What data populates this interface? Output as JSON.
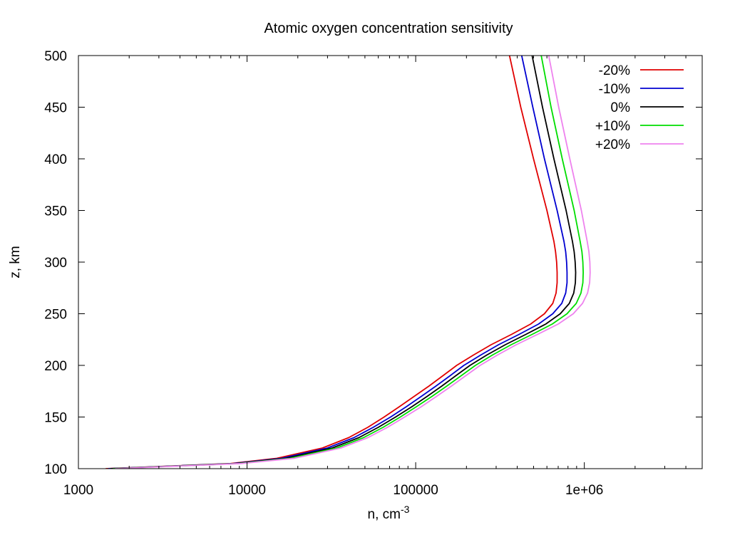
{
  "chart_data": {
    "type": "line",
    "title": "Atomic oxygen concentration sensitivity",
    "xlabel": "n, cm",
    "xlabel_superscript": "-3",
    "ylabel": "z, km",
    "x_scale": "log",
    "xlim": [
      1000,
      5000000
    ],
    "ylim": [
      100,
      500
    ],
    "x_tick_labels": [
      "1000",
      "10000",
      "100000",
      "1e+06"
    ],
    "x_tick_values": [
      1000,
      10000,
      100000,
      1000000
    ],
    "y_ticks": [
      100,
      150,
      200,
      250,
      300,
      350,
      400,
      450,
      500
    ],
    "grid": false,
    "legend_position": "top-right",
    "altitudes": [
      100,
      105,
      110,
      120,
      130,
      140,
      150,
      160,
      170,
      180,
      190,
      200,
      210,
      220,
      230,
      240,
      250,
      260,
      270,
      280,
      290,
      300,
      310,
      320,
      350,
      400,
      450,
      500
    ],
    "series": [
      {
        "name": "-20%",
        "color": "#e00000",
        "values": [
          1450,
          8000,
          15000,
          28000,
          40000,
          52000,
          65000,
          80000,
          98000,
          120000,
          145000,
          175000,
          220000,
          280000,
          370000,
          480000,
          580000,
          650000,
          680000,
          690000,
          690000,
          685000,
          675000,
          660000,
          600000,
          500000,
          420000,
          360000
        ]
      },
      {
        "name": "-10%",
        "color": "#0000d0",
        "values": [
          1500,
          8300,
          16000,
          30000,
          43000,
          56000,
          71000,
          88000,
          108000,
          132000,
          160000,
          193000,
          243000,
          310000,
          410000,
          535000,
          650000,
          735000,
          775000,
          790000,
          790000,
          785000,
          775000,
          757000,
          690000,
          580000,
          495000,
          425000
        ]
      },
      {
        "name": "0%",
        "color": "#000000",
        "values": [
          1550,
          8600,
          17000,
          32000,
          46000,
          60000,
          76000,
          95000,
          117000,
          143000,
          173000,
          210000,
          264000,
          340000,
          450000,
          590000,
          720000,
          815000,
          865000,
          885000,
          888000,
          882000,
          870000,
          850000,
          780000,
          660000,
          565000,
          490000
        ]
      },
      {
        "name": "+10%",
        "color": "#00dd00",
        "values": [
          1600,
          8900,
          18000,
          34000,
          49000,
          64000,
          81000,
          101000,
          125000,
          153000,
          186000,
          226000,
          285000,
          368000,
          490000,
          645000,
          790000,
          895000,
          955000,
          980000,
          985000,
          980000,
          968000,
          945000,
          870000,
          740000,
          635000,
          555000
        ]
      },
      {
        "name": "+20%",
        "color": "#ee82ee",
        "values": [
          1650,
          9200,
          19000,
          36000,
          52000,
          68000,
          86000,
          108000,
          133000,
          163000,
          198000,
          241000,
          305000,
          395000,
          528000,
          700000,
          860000,
          975000,
          1045000,
          1075000,
          1082000,
          1078000,
          1065000,
          1040000,
          960000,
          820000,
          705000,
          615000
        ]
      }
    ]
  }
}
